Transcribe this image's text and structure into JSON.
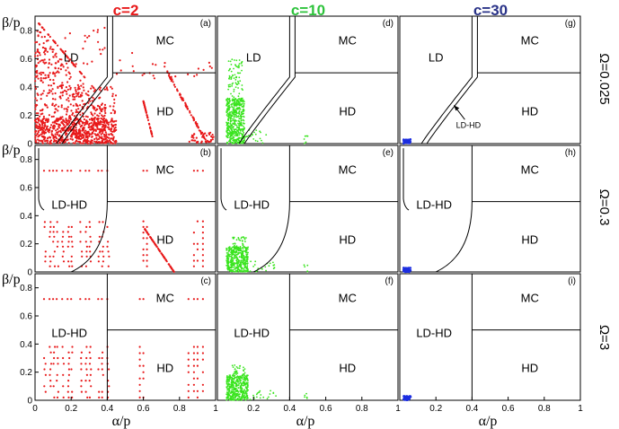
{
  "figure": {
    "columns": [
      {
        "label": "c=2",
        "color": "#e8191a"
      },
      {
        "label": "c=10",
        "color": "#2ec33c"
      },
      {
        "label": "c=30",
        "color": "#2a3388"
      }
    ],
    "rows": [
      {
        "label": "Ω=0.025"
      },
      {
        "label": "Ω=0.3"
      },
      {
        "label": "Ω=3"
      }
    ],
    "xlabel": "α/p",
    "ylabel": "β/p",
    "xticks": [
      "0",
      "0.2",
      "0.4",
      "0.6",
      "0.8",
      "1"
    ],
    "xticks_first_col": [
      "0",
      "0.2",
      "0.4",
      "0.6",
      "0.8",
      "1"
    ],
    "xticks_mid_col": [
      "0.2",
      "0.4",
      "0.6",
      "0.8",
      "1"
    ],
    "yticks": [
      "0",
      "0.2",
      "0.4",
      "0.6",
      "0.8"
    ],
    "colors": {
      "c2": "#e8191a",
      "c10": "#39e41e",
      "c30": "#1c2ee0",
      "boundary": "#000000"
    }
  },
  "chart_data": [
    {
      "type": "scatter",
      "panel": "(a)",
      "row": "Ω=0.025",
      "column": "c=2",
      "xlim": [
        0,
        1
      ],
      "ylim": [
        0,
        0.9
      ],
      "regions": [
        "LD",
        "MC",
        "HD"
      ],
      "series": [
        {
          "color": "#e8191a",
          "points_description_x_range": [
            0,
            1
          ],
          "points_y_range": [
            0,
            0.85
          ]
        }
      ]
    },
    {
      "type": "scatter",
      "panel": "(d)",
      "row": "Ω=0.025",
      "column": "c=10",
      "xlim": [
        0,
        1
      ],
      "ylim": [
        0,
        0.9
      ],
      "regions": [
        "LD",
        "MC",
        "HD"
      ],
      "series": [
        {
          "color": "#39e41e",
          "x_range": [
            0.05,
            0.5
          ],
          "y_range": [
            0,
            0.6
          ]
        }
      ]
    },
    {
      "type": "scatter",
      "panel": "(g)",
      "row": "Ω=0.025",
      "column": "c=30",
      "xlim": [
        0,
        1
      ],
      "ylim": [
        0,
        0.9
      ],
      "regions": [
        "LD",
        "MC",
        "HD"
      ],
      "annotation": "LD-HD",
      "series": [
        {
          "color": "#1c2ee0",
          "x_range": [
            0.02,
            0.06
          ],
          "y_range": [
            0,
            0.02
          ]
        }
      ]
    },
    {
      "type": "scatter",
      "panel": "(b)",
      "row": "Ω=0.3",
      "column": "c=2",
      "xlim": [
        0,
        1
      ],
      "ylim": [
        0,
        0.9
      ],
      "regions": [
        "LD-HD",
        "MC",
        "HD"
      ],
      "series": [
        {
          "color": "#e8191a",
          "x_range": [
            0,
            0.95
          ],
          "y_range": [
            0,
            0.72
          ]
        }
      ]
    },
    {
      "type": "scatter",
      "panel": "(e)",
      "row": "Ω=0.3",
      "column": "c=10",
      "xlim": [
        0,
        1
      ],
      "ylim": [
        0,
        0.9
      ],
      "regions": [
        "LD-HD",
        "MC",
        "HD"
      ],
      "series": [
        {
          "color": "#39e41e",
          "x_range": [
            0.05,
            0.5
          ],
          "y_range": [
            0,
            0.25
          ]
        }
      ]
    },
    {
      "type": "scatter",
      "panel": "(h)",
      "row": "Ω=0.3",
      "column": "c=30",
      "xlim": [
        0,
        1
      ],
      "ylim": [
        0,
        0.9
      ],
      "regions": [
        "LD-HD",
        "MC",
        "HD"
      ],
      "series": [
        {
          "color": "#1c2ee0",
          "x_range": [
            0.02,
            0.06
          ],
          "y_range": [
            0,
            0.04
          ]
        }
      ]
    },
    {
      "type": "scatter",
      "panel": "(c)",
      "row": "Ω=3",
      "column": "c=2",
      "xlim": [
        0,
        1
      ],
      "ylim": [
        0,
        0.9
      ],
      "regions": [
        "LD-HD",
        "MC",
        "HD"
      ],
      "series": [
        {
          "color": "#e8191a",
          "x_range": [
            0.05,
            0.95
          ],
          "y_range": [
            0,
            0.72
          ]
        }
      ]
    },
    {
      "type": "scatter",
      "panel": "(f)",
      "row": "Ω=3",
      "column": "c=10",
      "xlim": [
        0,
        1
      ],
      "ylim": [
        0,
        0.9
      ],
      "regions": [
        "LD-HD",
        "MC",
        "HD"
      ],
      "series": [
        {
          "color": "#39e41e",
          "x_range": [
            0.05,
            0.5
          ],
          "y_range": [
            0,
            0.25
          ]
        }
      ]
    },
    {
      "type": "scatter",
      "panel": "(i)",
      "row": "Ω=3",
      "column": "c=30",
      "xlim": [
        0,
        1
      ],
      "ylim": [
        0,
        0.9
      ],
      "regions": [
        "LD-HD",
        "MC",
        "HD"
      ],
      "series": [
        {
          "color": "#1c2ee0",
          "x_range": [
            0.02,
            0.06
          ],
          "y_range": [
            0,
            0.04
          ]
        }
      ]
    }
  ]
}
